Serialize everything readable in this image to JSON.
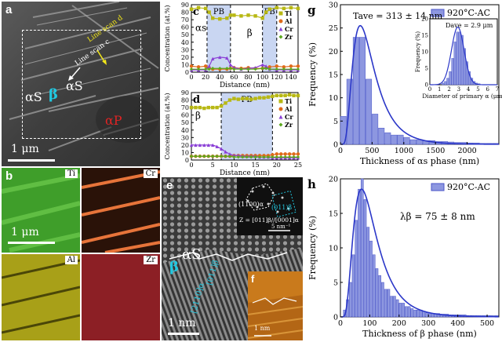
{
  "panel_a": {
    "label": "a",
    "phase_as_left": "αS",
    "phase_beta": "β",
    "phase_as_right": "αS",
    "phase_ap": "αP",
    "line_scan_d": "Line scan d",
    "line_scan_c": "Line scan c",
    "scale_bar": "1 μm"
  },
  "panel_b": {
    "label": "b",
    "maps": [
      "Ti",
      "Cr",
      "Al",
      "Zr"
    ],
    "scale_bar": "1 μm"
  },
  "panel_e": {
    "label": "e",
    "phase_as": "αS",
    "phase_beta": "β",
    "dir_beta": "[011]β",
    "dir_alpha": "[2110]α",
    "fft_spot_1": "(1100)α",
    "fft_spot_2": "(011)β",
    "zone_axis": "Z = [011]β//[0001]α",
    "fft_scale": "5 nm⁻¹",
    "scale_bar": "1 nm"
  },
  "panel_f": {
    "label": "f",
    "scale_bar": "1 nm"
  },
  "chart_data": [
    {
      "id": "c",
      "type": "line",
      "xlabel": "Distance (nm)",
      "ylabel": "Concentration (at.%)",
      "xlim": [
        0,
        150
      ],
      "ylim": [
        0,
        90
      ],
      "xticks": [
        0,
        20,
        40,
        60,
        80,
        100,
        120,
        140
      ],
      "yticks": [
        0,
        10,
        20,
        30,
        40,
        50,
        60,
        70,
        80,
        90
      ],
      "regions": [
        {
          "label": "PB",
          "x0": 22,
          "x1": 55
        },
        {
          "label": "PB",
          "x0": 100,
          "x1": 120
        }
      ],
      "annotations": {
        "left": "αs",
        "middle": "β"
      },
      "legend": "right",
      "series": [
        {
          "name": "Ti",
          "color": "#b8b814",
          "x": [
            0,
            10,
            20,
            25,
            30,
            40,
            50,
            55,
            60,
            70,
            80,
            90,
            100,
            105,
            110,
            120,
            130,
            140,
            150
          ],
          "y": [
            84,
            86,
            85,
            80,
            72,
            71,
            72,
            76,
            76,
            75,
            76,
            75,
            72,
            80,
            84,
            86,
            85,
            86,
            85
          ]
        },
        {
          "name": "Al",
          "color": "#e06a1a",
          "x": [
            0,
            10,
            20,
            25,
            30,
            40,
            50,
            55,
            60,
            70,
            80,
            90,
            100,
            105,
            110,
            120,
            130,
            140,
            150
          ],
          "y": [
            8,
            7,
            8,
            6,
            4,
            4,
            4,
            5,
            6,
            5,
            6,
            5,
            5,
            6,
            7,
            8,
            7,
            8,
            8
          ]
        },
        {
          "name": "Cr",
          "color": "#8a3fd6",
          "x": [
            0,
            10,
            20,
            25,
            30,
            40,
            50,
            55,
            60,
            70,
            80,
            90,
            100,
            105,
            110,
            120,
            130,
            140,
            150
          ],
          "y": [
            3,
            3,
            3,
            8,
            18,
            20,
            19,
            10,
            6,
            4,
            5,
            6,
            10,
            8,
            4,
            3,
            3,
            3,
            3
          ]
        },
        {
          "name": "Zr",
          "color": "#5ca81e",
          "x": [
            0,
            10,
            20,
            25,
            30,
            40,
            50,
            55,
            60,
            70,
            80,
            90,
            100,
            105,
            110,
            120,
            130,
            140,
            150
          ],
          "y": [
            4,
            4,
            4,
            4,
            5,
            5,
            5,
            5,
            4,
            4,
            4,
            4,
            5,
            5,
            4,
            4,
            4,
            4,
            4
          ]
        }
      ]
    },
    {
      "id": "d",
      "type": "line",
      "xlabel": "Distance (nm)",
      "ylabel": "Concentration (at.%)",
      "xlim": [
        0,
        25
      ],
      "ylim": [
        0,
        90
      ],
      "xticks": [
        0,
        5,
        10,
        15,
        20,
        25
      ],
      "yticks": [
        0,
        10,
        20,
        30,
        40,
        50,
        60,
        70,
        80,
        90
      ],
      "regions": [
        {
          "label": "PB",
          "x0": 7,
          "x1": 19
        }
      ],
      "annotations": {
        "left": "β"
      },
      "legend": "right",
      "series": [
        {
          "name": "Ti",
          "color": "#b8b814",
          "x": [
            0,
            1,
            2,
            3,
            4,
            5,
            6,
            7,
            8,
            9,
            10,
            11,
            12,
            13,
            14,
            15,
            16,
            17,
            18,
            19,
            20,
            21,
            22,
            23,
            24,
            25
          ],
          "y": [
            70,
            70,
            70,
            69,
            70,
            70,
            70,
            72,
            76,
            80,
            82,
            81,
            82,
            82,
            81,
            82,
            83,
            83,
            84,
            85,
            86,
            86,
            86,
            87,
            86,
            86
          ]
        },
        {
          "name": "Al",
          "color": "#e06a1a",
          "x": [
            0,
            1,
            2,
            3,
            4,
            5,
            6,
            7,
            8,
            9,
            10,
            11,
            12,
            13,
            14,
            15,
            16,
            17,
            18,
            19,
            20,
            21,
            22,
            23,
            24,
            25
          ],
          "y": [
            5,
            5,
            5,
            5,
            5,
            5,
            5,
            5,
            5,
            5,
            6,
            6,
            6,
            6,
            6,
            6,
            6,
            6,
            6,
            7,
            8,
            8,
            8,
            8,
            8,
            8
          ]
        },
        {
          "name": "Cr",
          "color": "#8a3fd6",
          "x": [
            0,
            1,
            2,
            3,
            4,
            5,
            6,
            7,
            8,
            9,
            10,
            11,
            12,
            13,
            14,
            15,
            16,
            17,
            18,
            19,
            20,
            21,
            22,
            23,
            24,
            25
          ],
          "y": [
            20,
            20,
            20,
            20,
            20,
            20,
            18,
            15,
            11,
            8,
            6,
            6,
            5,
            5,
            5,
            5,
            4,
            4,
            4,
            3,
            3,
            3,
            3,
            3,
            3,
            3
          ]
        },
        {
          "name": "Zr",
          "color": "#5ca81e",
          "x": [
            0,
            1,
            2,
            3,
            4,
            5,
            6,
            7,
            8,
            9,
            10,
            11,
            12,
            13,
            14,
            15,
            16,
            17,
            18,
            19,
            20,
            21,
            22,
            23,
            24,
            25
          ],
          "y": [
            5,
            5,
            5,
            5,
            5,
            5,
            5,
            5,
            5,
            5,
            4,
            4,
            4,
            4,
            4,
            4,
            4,
            4,
            4,
            4,
            4,
            4,
            4,
            4,
            4,
            4
          ]
        }
      ]
    },
    {
      "id": "g",
      "type": "bar",
      "xlabel": "Thickness of αs phase (nm)",
      "ylabel": "Frequency (%)",
      "xlim": [
        0,
        2500
      ],
      "ylim": [
        0,
        30
      ],
      "xticks": [
        0,
        500,
        1000,
        1500,
        2000
      ],
      "yticks": [
        0,
        5,
        10,
        15,
        20,
        25,
        30
      ],
      "legend_label": "920°C-AC",
      "annotation": "Tave = 313 ± 14 nm",
      "bin_width": 100,
      "x": [
        50,
        150,
        250,
        350,
        450,
        550,
        650,
        750,
        850,
        950,
        1050,
        1150,
        1250,
        1350,
        1450,
        1550,
        1650,
        1750,
        1850,
        1950,
        2050,
        2150,
        2250,
        2350,
        2450
      ],
      "values": [
        6,
        14,
        23,
        23,
        14,
        6.5,
        3.5,
        2.5,
        2,
        2,
        1.5,
        1,
        1,
        0.8,
        0.8,
        0.6,
        0.6,
        0.5,
        0.4,
        0.4,
        0.3,
        0.3,
        0.2,
        0.2,
        0.2
      ],
      "fit": {
        "type": "lognormal",
        "peak_x": 313,
        "peak_y": 25.5,
        "color": "#2b37c8"
      },
      "inset": {
        "type": "bar",
        "xlabel": "Diameter of primary α (μm)",
        "ylabel": "Frequency (%)",
        "xlim": [
          0,
          7
        ],
        "ylim": [
          0,
          20
        ],
        "xticks": [
          0,
          1,
          2,
          3,
          4,
          5,
          6,
          7
        ],
        "yticks": [
          0,
          5,
          10,
          15,
          20
        ],
        "annotation": "Dave = 2.9 μm",
        "bin_width": 0.25,
        "x": [
          1.375,
          1.625,
          1.875,
          2.125,
          2.375,
          2.625,
          2.875,
          3.125,
          3.375,
          3.625,
          3.875,
          4.125,
          4.375,
          4.625,
          4.875,
          5.125
        ],
        "values": [
          0.5,
          1,
          2,
          4,
          8,
          13,
          16,
          16,
          15,
          11,
          7,
          4,
          2,
          1,
          0.5,
          0.3
        ],
        "fit": {
          "type": "normal",
          "mean": 2.9,
          "sd": 0.65,
          "peak_y": 17.5
        }
      }
    },
    {
      "id": "h",
      "type": "bar",
      "xlabel": "Thickness of β phase (nm)",
      "ylabel": "Frequency (%)",
      "xlim": [
        0,
        540
      ],
      "ylim": [
        0,
        20
      ],
      "xticks": [
        0,
        100,
        200,
        300,
        400,
        500
      ],
      "yticks": [
        0,
        5,
        10,
        15,
        20
      ],
      "legend_label": "920°C-AC",
      "annotation": "λβ = 75 ± 8 nm",
      "bin_width": 10,
      "x": [
        15,
        25,
        35,
        45,
        55,
        65,
        75,
        85,
        95,
        105,
        115,
        125,
        135,
        145,
        155,
        165,
        175,
        185,
        195,
        205,
        215,
        225,
        235,
        245,
        255,
        265,
        275,
        285,
        295,
        305,
        315,
        325,
        335,
        345,
        355,
        365,
        375,
        385,
        395,
        405,
        415,
        425,
        435,
        445,
        455,
        465,
        475,
        485,
        495,
        505,
        515,
        525,
        535
      ],
      "values": [
        1,
        2.5,
        5,
        9,
        14,
        18.5,
        20,
        17,
        13,
        11,
        9,
        7,
        6,
        5,
        4,
        4,
        3,
        3,
        2.5,
        2,
        2,
        1.5,
        1.5,
        1.2,
        1,
        1,
        1,
        0.8,
        0.6,
        0.6,
        0.5,
        0.5,
        0.5,
        0.4,
        0.4,
        0.4,
        0.3,
        0.3,
        0.3,
        0.3,
        0.3,
        0.3,
        0.2,
        0.2,
        0.2,
        0.2,
        0.2,
        0.2,
        0.2,
        0.2,
        0.2,
        0.2,
        0.2
      ],
      "fit": {
        "type": "lognormal",
        "peak_x": 72,
        "peak_y": 18.5,
        "color": "#2b37c8"
      }
    }
  ]
}
